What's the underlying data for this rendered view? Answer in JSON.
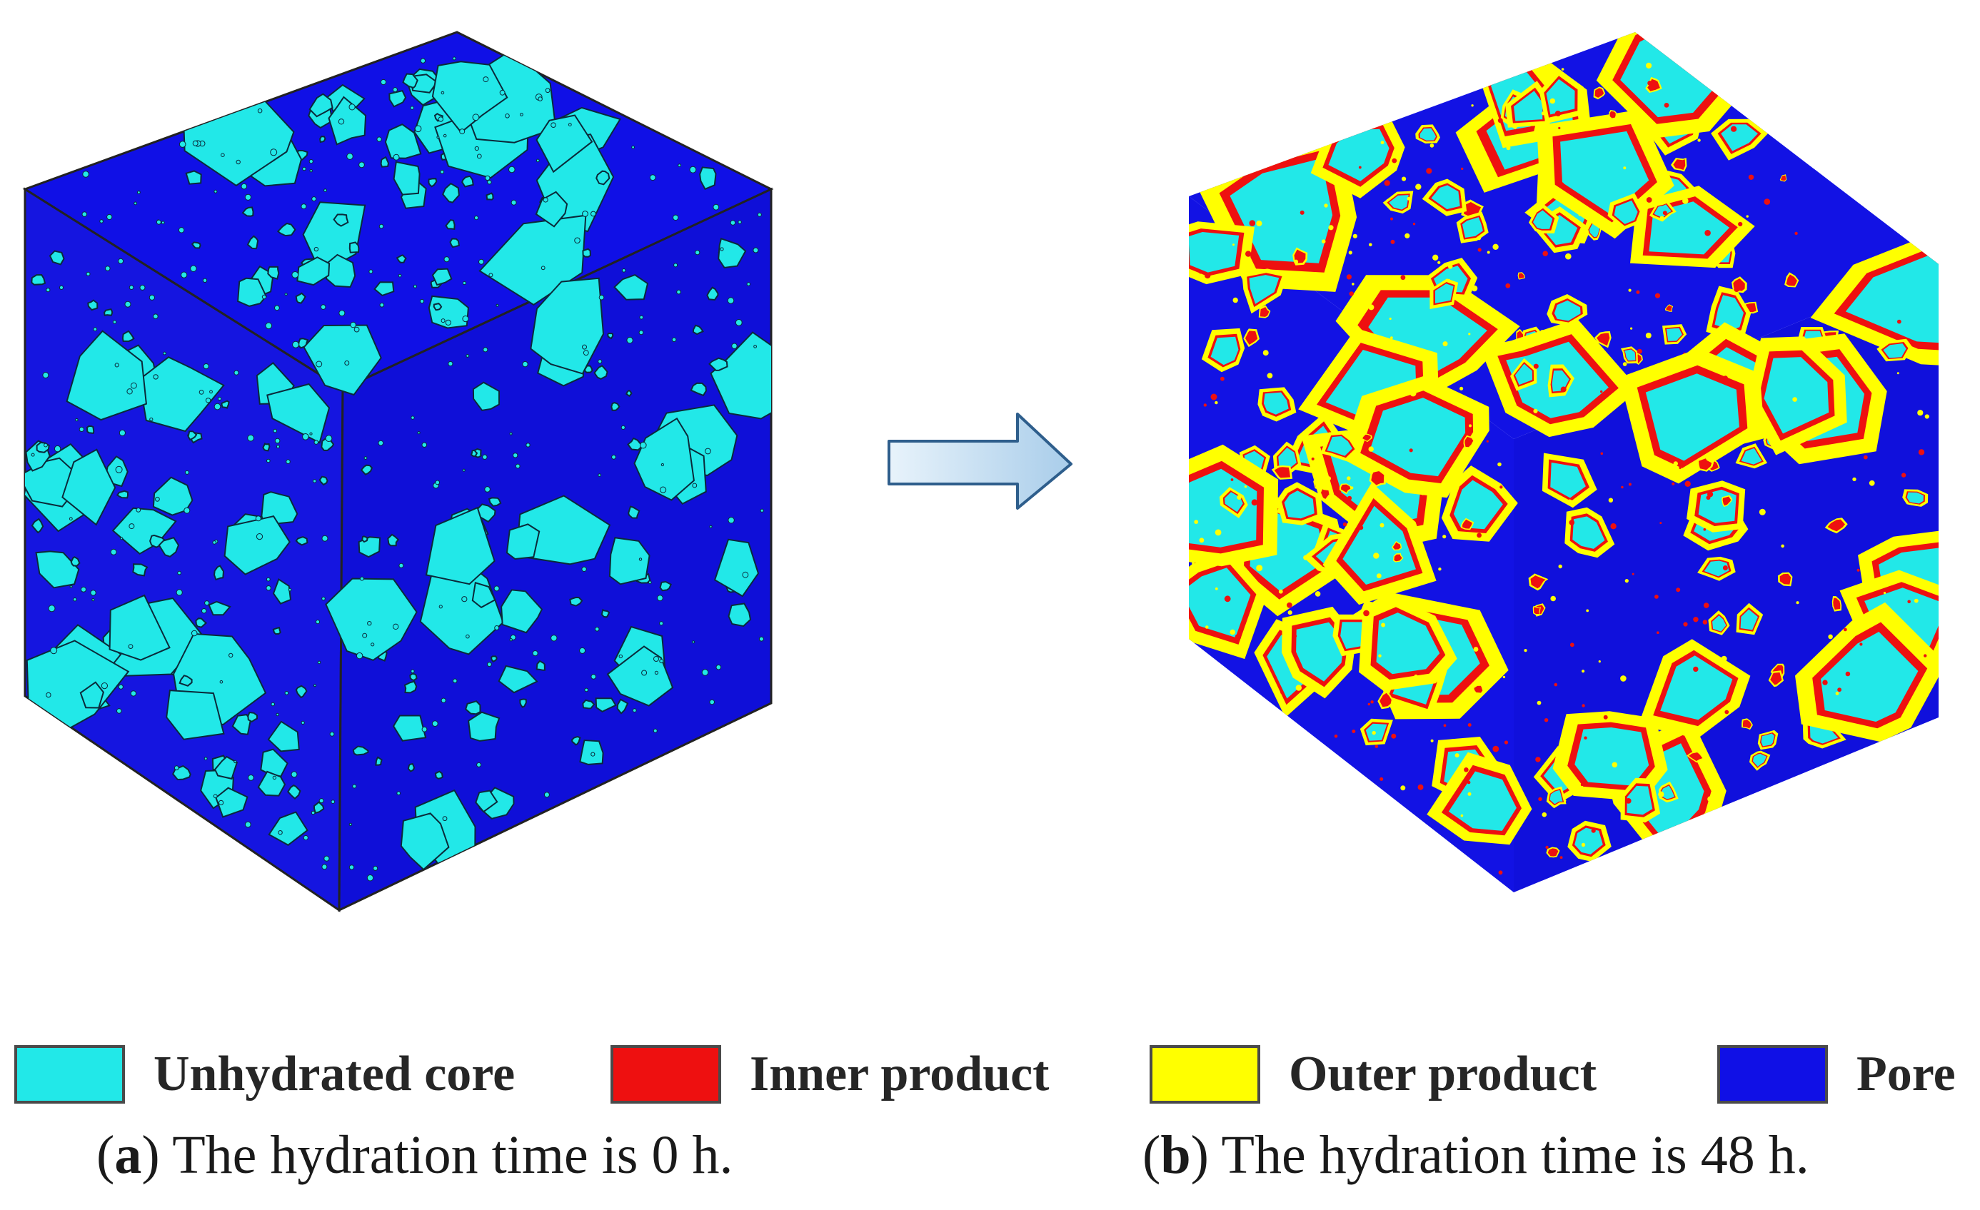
{
  "legend": [
    {
      "label": "Unhydrated core",
      "color": "#22E8E8"
    },
    {
      "label": "Inner product",
      "color": "#EE1010"
    },
    {
      "label": "Outer product",
      "color": "#FFFF00"
    },
    {
      "label": "Pore",
      "color": "#1010E6"
    }
  ],
  "captions": {
    "a": {
      "open": "(",
      "tag": "a",
      "close": ")",
      "text": " The hydration time is 0 h."
    },
    "b": {
      "open": "(",
      "tag": "b",
      "close": ")",
      "text": " The hydration time is 48 h."
    }
  },
  "panels": {
    "a": {
      "hydration_time_h": 0,
      "phases": [
        "Unhydrated core",
        "Pore"
      ]
    },
    "b": {
      "hydration_time_h": 48,
      "phases": [
        "Unhydrated core",
        "Inner product",
        "Outer product",
        "Pore"
      ]
    }
  },
  "colors": {
    "core": "#22E8E8",
    "inner": "#EE1010",
    "outer": "#FFFF00",
    "pore": "#1010E6",
    "arrow_fill": "#BFDCF2",
    "arrow_stroke": "#2E5E8C"
  },
  "icons": {
    "arrow": "right-arrow-icon"
  }
}
